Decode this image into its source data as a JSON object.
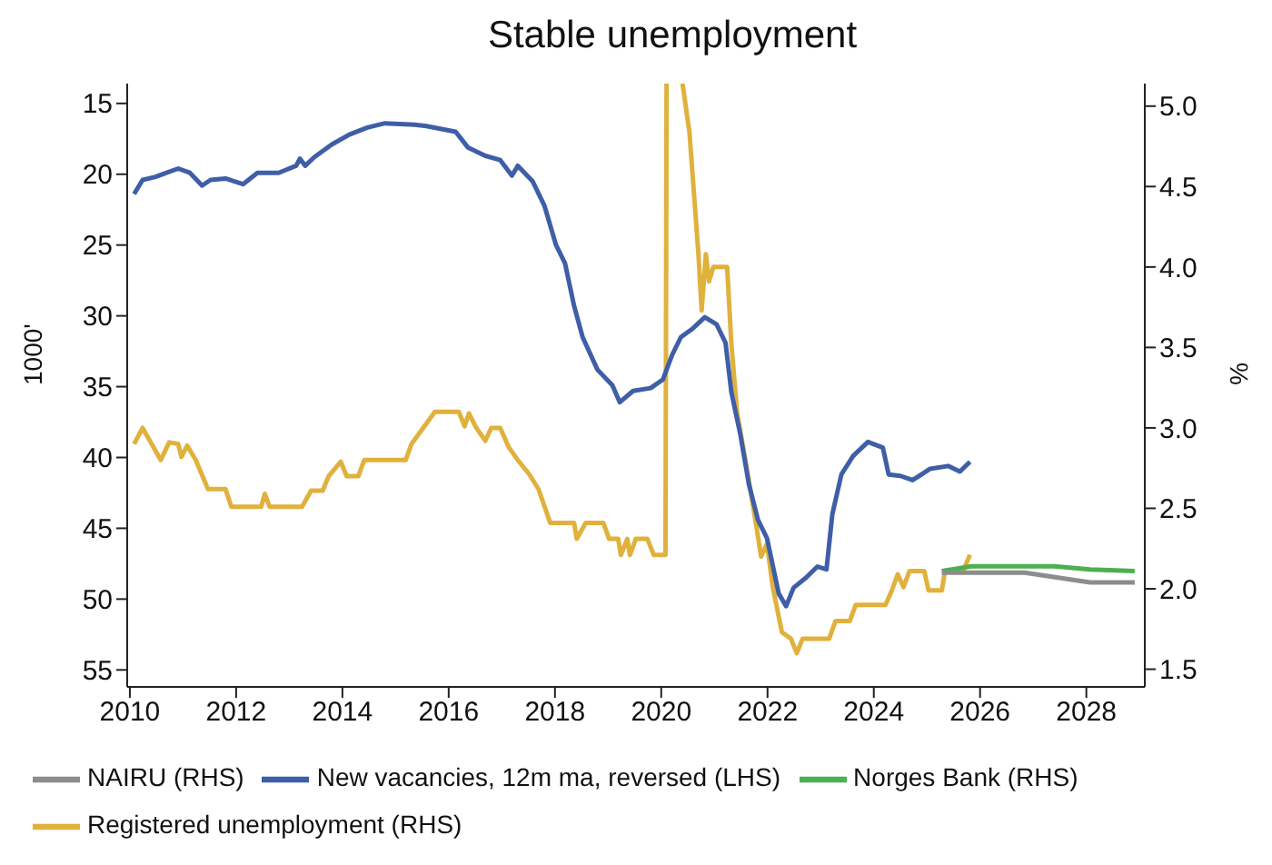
{
  "chart_data": {
    "type": "line",
    "title": "Stable unemployment",
    "ylabel": "1000'",
    "y2label": "%",
    "legend": "bottom",
    "xlim": [
      2009.95,
      2029.1
    ],
    "xticks": [
      2010,
      2012,
      2014,
      2016,
      2018,
      2020,
      2022,
      2024,
      2026,
      2028
    ],
    "ylim": [
      56.2,
      13.6
    ],
    "yticks": [
      15,
      20,
      25,
      30,
      35,
      40,
      45,
      50,
      55
    ],
    "y2lim": [
      1.39,
      5.14
    ],
    "y2ticks": [
      {
        "value": 1.5,
        "label": "1.5"
      },
      {
        "value": 2,
        "label": "2.0"
      },
      {
        "value": 2.5,
        "label": "2.5"
      },
      {
        "value": 3,
        "label": "3.0"
      },
      {
        "value": 3.5,
        "label": "3.5"
      },
      {
        "value": 4,
        "label": "4.0"
      },
      {
        "value": 4.5,
        "label": "4.5"
      },
      {
        "value": 5,
        "label": "5.0"
      }
    ],
    "series": [
      {
        "name": "Registered unemployment (RHS)",
        "color": "#e0b13c",
        "axis": "y2",
        "x": [
          2010.08,
          2010.24,
          2010.41,
          2010.58,
          2010.74,
          2010.91,
          2010.97,
          2011.08,
          2011.24,
          2011.47,
          2011.8,
          2011.91,
          2012.08,
          2012.47,
          2012.54,
          2012.63,
          2013.24,
          2013.41,
          2013.63,
          2013.74,
          2013.97,
          2014.08,
          2014.3,
          2014.41,
          2015.19,
          2015.3,
          2015.52,
          2015.74,
          2016.19,
          2016.3,
          2016.38,
          2016.52,
          2016.69,
          2016.8,
          2016.97,
          2017.13,
          2017.3,
          2017.52,
          2017.69,
          2017.91,
          2018.36,
          2018.41,
          2018.58,
          2018.91,
          2019.02,
          2019.19,
          2019.24,
          2019.36,
          2019.41,
          2019.52,
          2019.74,
          2019.86,
          2020.08,
          2020.1,
          2020.25,
          2020.4,
          2020.53,
          2020.7,
          2020.76,
          2020.84,
          2020.9,
          2020.98,
          2021.24,
          2021.32,
          2021.43,
          2021.6,
          2021.77,
          2021.88,
          2021.99,
          2022.1,
          2022.27,
          2022.44,
          2022.55,
          2022.66,
          2023.16,
          2023.28,
          2023.55,
          2023.66,
          2024.22,
          2024.34,
          2024.45,
          2024.56,
          2024.67,
          2024.95,
          2025.03,
          2025.28,
          2025.34,
          2025.68,
          2025.81
        ],
        "values": [
          2.9,
          3.0,
          2.9,
          2.8,
          2.91,
          2.9,
          2.82,
          2.89,
          2.8,
          2.62,
          2.62,
          2.51,
          2.51,
          2.51,
          2.59,
          2.51,
          2.51,
          2.61,
          2.61,
          2.7,
          2.79,
          2.7,
          2.7,
          2.8,
          2.8,
          2.9,
          3.0,
          3.1,
          3.1,
          3.01,
          3.09,
          3.0,
          2.92,
          3.0,
          3.0,
          2.88,
          2.8,
          2.71,
          2.62,
          2.41,
          2.41,
          2.31,
          2.41,
          2.41,
          2.31,
          2.31,
          2.21,
          2.31,
          2.21,
          2.31,
          2.31,
          2.21,
          2.21,
          5.14,
          null,
          5.14,
          4.84,
          4.08,
          3.73,
          4.08,
          3.91,
          4.0,
          4.0,
          3.52,
          3.09,
          2.77,
          2.43,
          2.2,
          2.28,
          2.01,
          1.73,
          1.69,
          1.6,
          1.69,
          1.69,
          1.8,
          1.8,
          1.9,
          1.9,
          1.99,
          2.09,
          2.01,
          2.11,
          2.11,
          1.99,
          1.99,
          2.11,
          2.11,
          2.21
        ]
      },
      {
        "name": "Norges Bank (RHS)",
        "color": "#4caf50",
        "axis": "y2",
        "x": [
          2025.28,
          2025.84,
          2027.4,
          2028.07,
          2028.91
        ],
        "values": [
          2.11,
          2.14,
          2.14,
          2.12,
          2.11
        ]
      },
      {
        "name": "NAIRU (RHS)",
        "color": "#8c8c8c",
        "axis": "y2",
        "x": [
          2025.28,
          2026.84,
          2028.07,
          2028.91
        ],
        "values": [
          2.1,
          2.1,
          2.04,
          2.04
        ]
      },
      {
        "name": "New vacancies, 12m ma, reversed (LHS)",
        "color": "#3f5ea8",
        "axis": "y",
        "x": [
          2010.08,
          2010.24,
          2010.47,
          2010.69,
          2010.91,
          2011.13,
          2011.36,
          2011.52,
          2011.8,
          2012.13,
          2012.4,
          2012.8,
          2013.13,
          2013.2,
          2013.3,
          2013.47,
          2013.8,
          2014.13,
          2014.47,
          2014.8,
          2015.36,
          2015.58,
          2016.13,
          2016.36,
          2016.69,
          2016.97,
          2017.19,
          2017.3,
          2017.58,
          2017.8,
          2018.02,
          2018.19,
          2018.36,
          2018.52,
          2018.8,
          2019.08,
          2019.22,
          2019.47,
          2019.8,
          2020.03,
          2020.2,
          2020.37,
          2020.59,
          2020.82,
          2021.04,
          2021.21,
          2021.32,
          2021.49,
          2021.65,
          2021.82,
          2021.99,
          2022.21,
          2022.35,
          2022.49,
          2022.72,
          2022.94,
          2023.11,
          2023.22,
          2023.39,
          2023.61,
          2023.89,
          2024.17,
          2024.28,
          2024.5,
          2024.73,
          2025.06,
          2025.4,
          2025.62,
          2025.81
        ],
        "values": [
          21.4,
          20.4,
          20.2,
          19.9,
          19.6,
          19.9,
          20.8,
          20.4,
          20.3,
          20.7,
          19.9,
          19.9,
          19.4,
          18.9,
          19.4,
          18.8,
          17.9,
          17.2,
          16.7,
          16.4,
          16.5,
          16.6,
          17.0,
          18.1,
          18.7,
          19.0,
          20.1,
          19.4,
          20.5,
          22.2,
          25.0,
          26.3,
          29.3,
          31.5,
          33.8,
          34.9,
          36.1,
          35.3,
          35.1,
          34.5,
          32.8,
          31.5,
          30.9,
          30.1,
          30.6,
          31.9,
          35.4,
          38.4,
          41.9,
          44.4,
          45.7,
          49.6,
          50.5,
          49.2,
          48.5,
          47.7,
          47.9,
          44.0,
          41.2,
          39.9,
          38.9,
          39.3,
          41.2,
          41.3,
          41.6,
          40.8,
          40.6,
          41.0,
          40.3
        ]
      }
    ]
  }
}
